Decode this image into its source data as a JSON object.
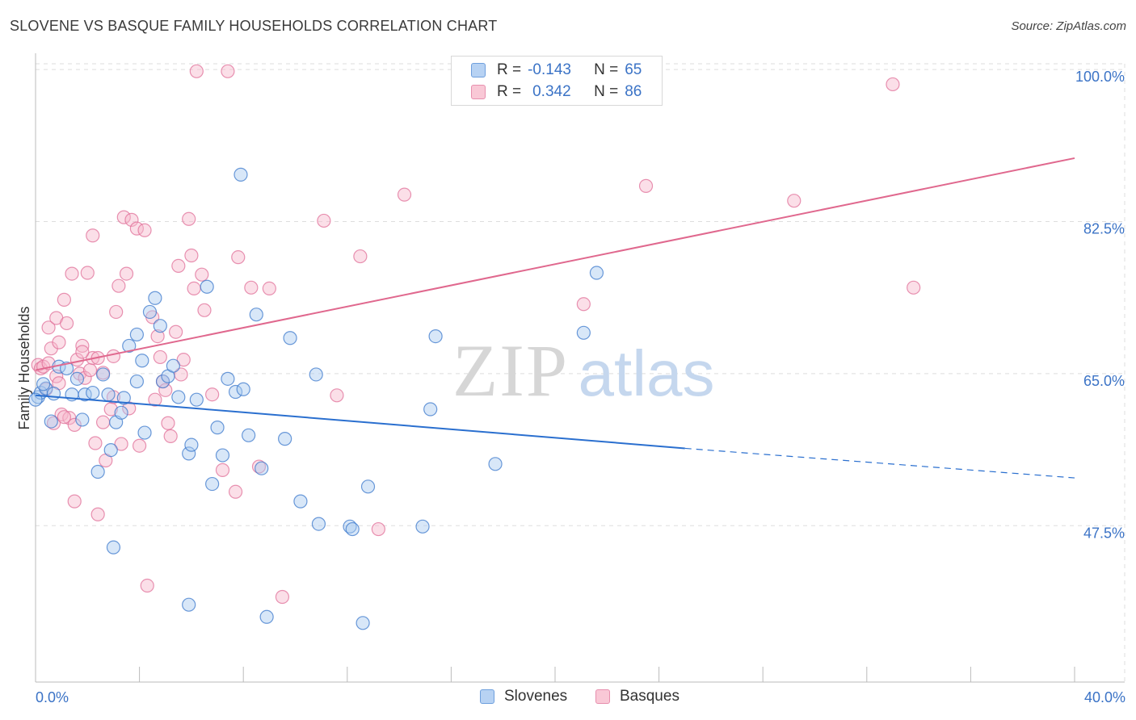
{
  "title": "SLOVENE VS BASQUE FAMILY HOUSEHOLDS CORRELATION CHART",
  "source": "Source: ZipAtlas.com",
  "watermark": {
    "zip": "ZIP",
    "atlas": "atlas"
  },
  "colors": {
    "slovenes_fill": "#a9c9f0",
    "slovenes_stroke": "#3b78cc",
    "basques_fill": "#f7b9cb",
    "basques_stroke": "#e06f98",
    "slovenes_line": "#2a6fcf",
    "basques_line": "#e0688e",
    "axis_text": "#3b73c6",
    "grid": "#dddddd"
  },
  "legend": {
    "r_label": "R =",
    "n_label": "N =",
    "slovenes": {
      "r": "-0.143",
      "n": "65"
    },
    "basques": {
      "r": "0.342",
      "n": "86"
    }
  },
  "bottom_legend": {
    "slovenes": "Slovenes",
    "basques": "Basques"
  },
  "chart_data": {
    "type": "scatter",
    "title": "SLOVENE VS BASQUE FAMILY HOUSEHOLDS CORRELATION CHART",
    "xlabel": "",
    "ylabel": "Family Households",
    "xlim": [
      0,
      40
    ],
    "ylim": [
      29.5,
      101.5
    ],
    "x_tick_labels": {
      "0": "0.0%",
      "40": "40.0%"
    },
    "y_ticks": [
      47.5,
      65.0,
      82.5,
      100.0
    ],
    "y_tick_labels": [
      "47.5%",
      "65.0%",
      "82.5%",
      "100.0%"
    ],
    "x_minor_ticks": [
      0,
      4,
      8,
      12,
      16,
      20,
      24,
      28,
      32,
      36,
      40
    ],
    "grid": true,
    "series": [
      {
        "name": "Slovenes",
        "r": -0.143,
        "n": 65,
        "trend": {
          "x0": 0,
          "y0": 62.5,
          "x1": 25,
          "y1": 56.4,
          "dashed_to": 40,
          "dashed_y": 53.0
        },
        "points": [
          [
            0.1,
            62.3
          ],
          [
            0.2,
            62.8
          ],
          [
            0.4,
            63.3
          ],
          [
            0.6,
            59.5
          ],
          [
            0.7,
            62.7
          ],
          [
            0.9,
            65.8
          ],
          [
            1.2,
            65.6
          ],
          [
            1.4,
            62.6
          ],
          [
            1.6,
            64.4
          ],
          [
            1.8,
            59.7
          ],
          [
            1.9,
            62.6
          ],
          [
            2.2,
            62.8
          ],
          [
            2.4,
            53.7
          ],
          [
            2.6,
            64.9
          ],
          [
            2.8,
            62.6
          ],
          [
            2.9,
            56.2
          ],
          [
            3.1,
            59.4
          ],
          [
            3.3,
            60.5
          ],
          [
            3.4,
            62.2
          ],
          [
            3.6,
            68.2
          ],
          [
            3.9,
            69.5
          ],
          [
            3.9,
            64.1
          ],
          [
            4.1,
            66.5
          ],
          [
            4.2,
            58.2
          ],
          [
            4.4,
            72.1
          ],
          [
            4.6,
            73.7
          ],
          [
            4.8,
            70.5
          ],
          [
            4.9,
            64.1
          ],
          [
            5.1,
            64.7
          ],
          [
            5.3,
            65.9
          ],
          [
            5.5,
            62.3
          ],
          [
            5.9,
            55.8
          ],
          [
            6.0,
            56.8
          ],
          [
            6.2,
            62.0
          ],
          [
            6.6,
            75.0
          ],
          [
            6.8,
            52.3
          ],
          [
            7.0,
            58.8
          ],
          [
            7.2,
            55.6
          ],
          [
            7.4,
            64.4
          ],
          [
            7.7,
            62.9
          ],
          [
            8.0,
            63.2
          ],
          [
            7.9,
            87.9
          ],
          [
            8.2,
            57.9
          ],
          [
            8.5,
            71.8
          ],
          [
            8.7,
            54.1
          ],
          [
            8.9,
            37.0
          ],
          [
            9.6,
            57.5
          ],
          [
            9.8,
            69.1
          ],
          [
            10.2,
            50.3
          ],
          [
            10.8,
            64.9
          ],
          [
            10.9,
            47.7
          ],
          [
            12.1,
            47.4
          ],
          [
            12.2,
            47.1
          ],
          [
            12.6,
            36.3
          ],
          [
            12.8,
            52.0
          ],
          [
            14.9,
            47.4
          ],
          [
            15.2,
            60.9
          ],
          [
            15.4,
            69.3
          ],
          [
            17.7,
            54.6
          ],
          [
            21.1,
            69.7
          ],
          [
            21.6,
            76.6
          ],
          [
            3.0,
            45.0
          ],
          [
            5.9,
            38.4
          ],
          [
            0.0,
            62.0
          ],
          [
            0.3,
            63.8
          ]
        ]
      },
      {
        "name": "Basques",
        "r": 0.342,
        "n": 86,
        "trend": {
          "x0": 0,
          "y0": 65.4,
          "x1": 40,
          "y1": 89.8
        },
        "points": [
          [
            0.1,
            66.0
          ],
          [
            0.2,
            65.6
          ],
          [
            0.3,
            65.8
          ],
          [
            0.4,
            63.2
          ],
          [
            0.5,
            70.3
          ],
          [
            0.6,
            67.9
          ],
          [
            0.7,
            59.3
          ],
          [
            0.8,
            71.4
          ],
          [
            0.8,
            64.7
          ],
          [
            0.9,
            68.6
          ],
          [
            1.0,
            60.3
          ],
          [
            1.1,
            73.5
          ],
          [
            1.2,
            70.8
          ],
          [
            1.3,
            59.9
          ],
          [
            1.4,
            76.5
          ],
          [
            1.5,
            59.1
          ],
          [
            1.5,
            50.3
          ],
          [
            1.6,
            66.6
          ],
          [
            1.7,
            65.0
          ],
          [
            1.8,
            68.2
          ],
          [
            1.9,
            64.5
          ],
          [
            2.0,
            76.6
          ],
          [
            2.1,
            65.4
          ],
          [
            2.2,
            66.8
          ],
          [
            2.3,
            57.0
          ],
          [
            2.4,
            66.8
          ],
          [
            2.4,
            48.8
          ],
          [
            2.2,
            80.9
          ],
          [
            2.6,
            59.4
          ],
          [
            2.7,
            55.0
          ],
          [
            2.9,
            60.9
          ],
          [
            3.0,
            67.0
          ],
          [
            3.1,
            72.1
          ],
          [
            3.2,
            75.1
          ],
          [
            3.3,
            56.9
          ],
          [
            3.4,
            83.0
          ],
          [
            3.5,
            76.5
          ],
          [
            3.6,
            61.0
          ],
          [
            3.7,
            82.7
          ],
          [
            3.9,
            81.7
          ],
          [
            4.0,
            56.7
          ],
          [
            4.2,
            81.5
          ],
          [
            4.3,
            40.6
          ],
          [
            4.5,
            71.5
          ],
          [
            4.7,
            69.3
          ],
          [
            4.8,
            66.9
          ],
          [
            4.9,
            64.1
          ],
          [
            5.0,
            63.1
          ],
          [
            5.1,
            59.3
          ],
          [
            5.2,
            57.8
          ],
          [
            5.4,
            69.8
          ],
          [
            5.5,
            77.4
          ],
          [
            5.7,
            66.6
          ],
          [
            5.9,
            82.8
          ],
          [
            6.0,
            78.6
          ],
          [
            6.1,
            74.8
          ],
          [
            6.2,
            99.8
          ],
          [
            6.4,
            76.4
          ],
          [
            6.5,
            72.3
          ],
          [
            6.8,
            62.6
          ],
          [
            7.2,
            53.9
          ],
          [
            7.4,
            99.8
          ],
          [
            7.7,
            51.4
          ],
          [
            7.8,
            78.4
          ],
          [
            8.3,
            74.9
          ],
          [
            8.6,
            54.3
          ],
          [
            9.0,
            74.8
          ],
          [
            9.5,
            39.3
          ],
          [
            11.1,
            82.6
          ],
          [
            11.6,
            62.5
          ],
          [
            12.5,
            78.5
          ],
          [
            13.2,
            47.1
          ],
          [
            14.2,
            85.6
          ],
          [
            21.1,
            73.0
          ],
          [
            23.5,
            86.6
          ],
          [
            29.2,
            84.9
          ],
          [
            33.0,
            98.3
          ],
          [
            33.8,
            74.9
          ],
          [
            1.1,
            60.0
          ],
          [
            2.6,
            65.1
          ],
          [
            3.0,
            62.3
          ],
          [
            4.6,
            62.0
          ],
          [
            0.9,
            63.9
          ],
          [
            1.8,
            67.5
          ],
          [
            5.6,
            64.9
          ],
          [
            0.5,
            66.2
          ]
        ]
      }
    ]
  }
}
